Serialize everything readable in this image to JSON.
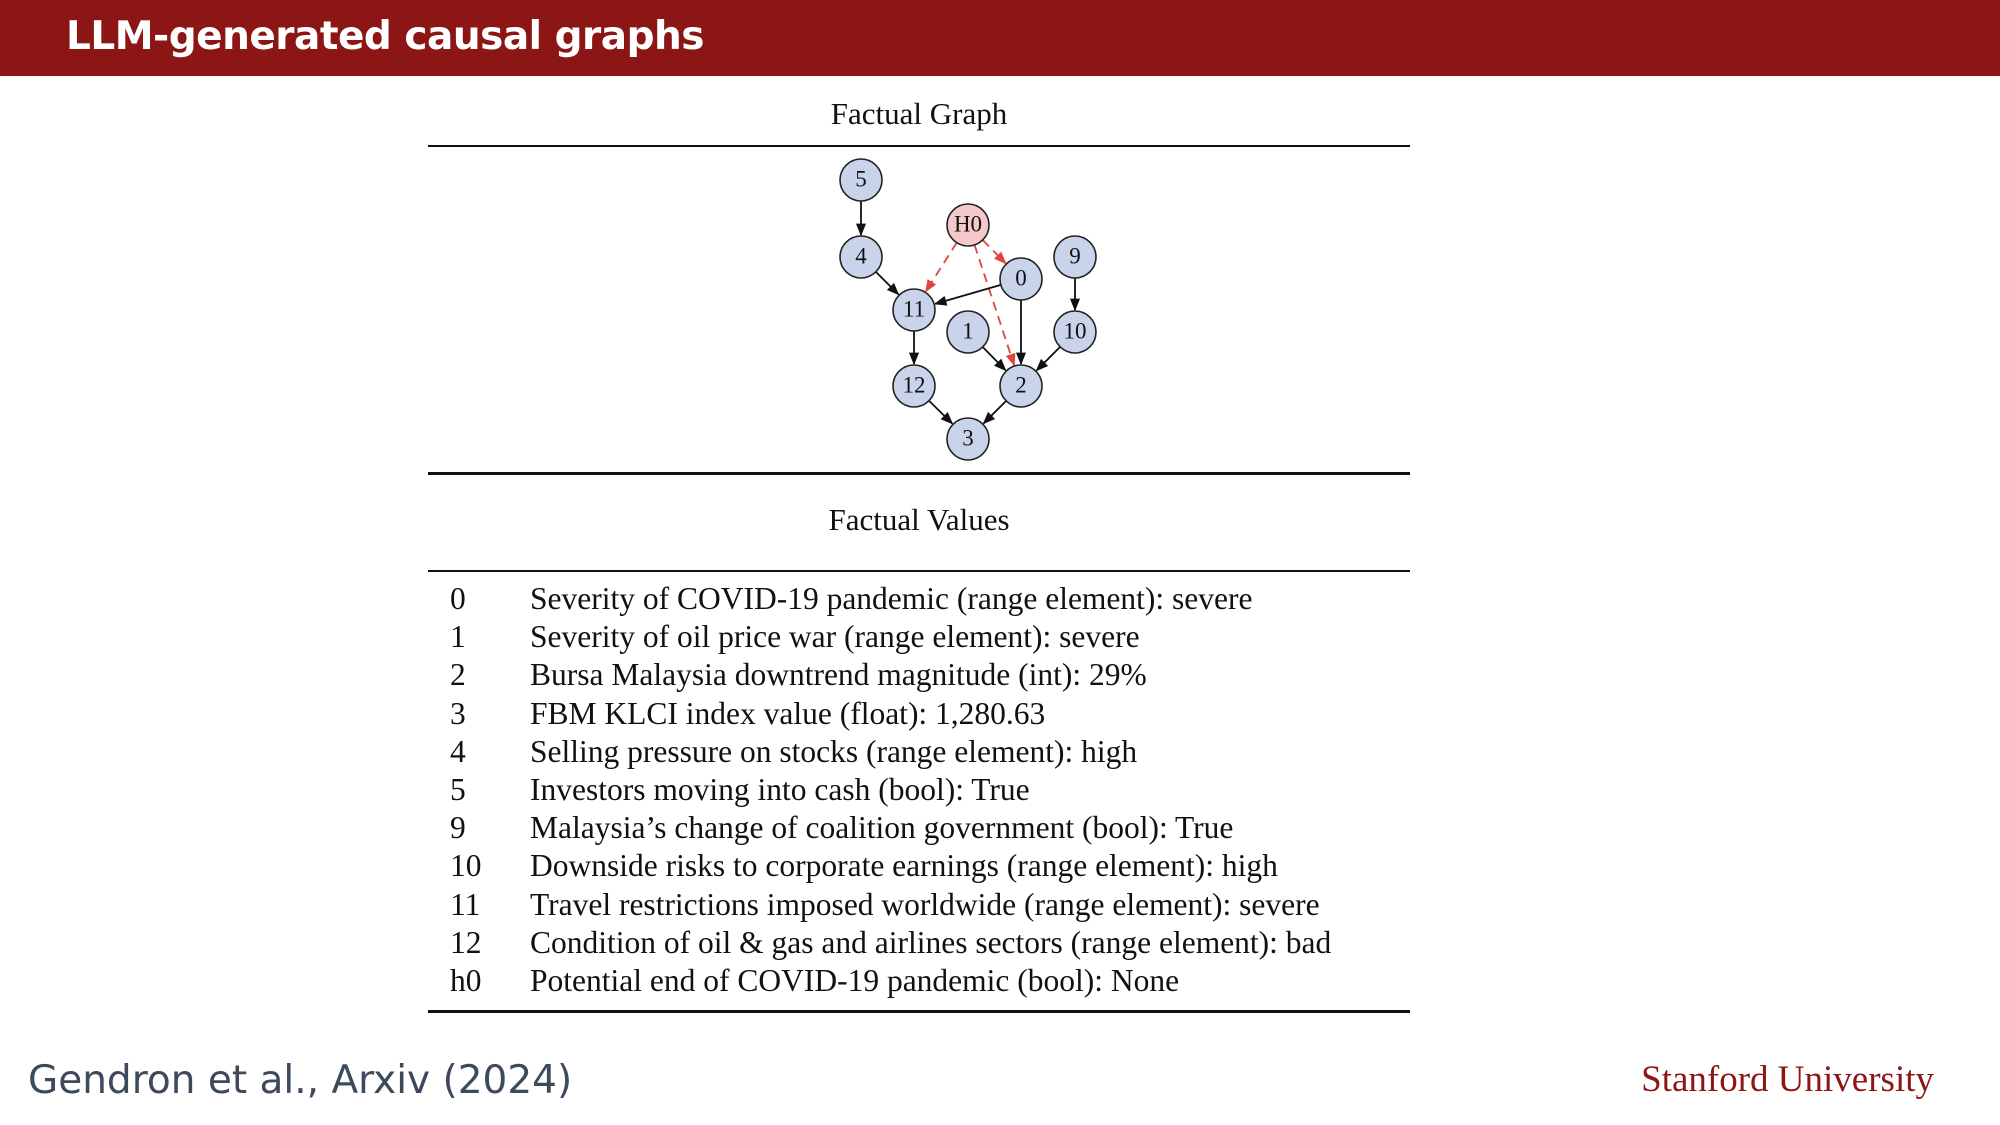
{
  "slide": {
    "title": "LLM-generated causal graphs"
  },
  "graph": {
    "heading": "Factual Graph",
    "nodes": [
      {
        "id": "5",
        "label": "5",
        "type": "observed"
      },
      {
        "id": "4",
        "label": "4",
        "type": "observed"
      },
      {
        "id": "H0",
        "label": "H0",
        "type": "hypothesis"
      },
      {
        "id": "9",
        "label": "9",
        "type": "observed"
      },
      {
        "id": "0",
        "label": "0",
        "type": "observed"
      },
      {
        "id": "11",
        "label": "11",
        "type": "observed"
      },
      {
        "id": "1",
        "label": "1",
        "type": "observed"
      },
      {
        "id": "10",
        "label": "10",
        "type": "observed"
      },
      {
        "id": "12",
        "label": "12",
        "type": "observed"
      },
      {
        "id": "2",
        "label": "2",
        "type": "observed"
      },
      {
        "id": "3",
        "label": "3",
        "type": "observed"
      }
    ],
    "edges": [
      {
        "from": "5",
        "to": "4",
        "style": "solid"
      },
      {
        "from": "4",
        "to": "11",
        "style": "solid"
      },
      {
        "from": "H0",
        "to": "11",
        "style": "dashed"
      },
      {
        "from": "H0",
        "to": "0",
        "style": "dashed"
      },
      {
        "from": "H0",
        "to": "2",
        "style": "dashed"
      },
      {
        "from": "0",
        "to": "11",
        "style": "solid"
      },
      {
        "from": "0",
        "to": "2",
        "style": "solid"
      },
      {
        "from": "9",
        "to": "10",
        "style": "solid"
      },
      {
        "from": "10",
        "to": "2",
        "style": "solid"
      },
      {
        "from": "1",
        "to": "2",
        "style": "solid"
      },
      {
        "from": "11",
        "to": "12",
        "style": "solid"
      },
      {
        "from": "12",
        "to": "3",
        "style": "solid"
      },
      {
        "from": "2",
        "to": "3",
        "style": "solid"
      }
    ],
    "colors": {
      "observed_fill": "#c9d3ea",
      "hypothesis_fill": "#f5c9c9",
      "node_stroke": "#222222",
      "solid_edge": "#111111",
      "dashed_edge": "#e0443c"
    }
  },
  "values": {
    "heading": "Factual Values",
    "rows": [
      {
        "index": "0",
        "text": "Severity of COVID-19 pandemic (range element): severe"
      },
      {
        "index": "1",
        "text": "Severity of oil price war (range element): severe"
      },
      {
        "index": "2",
        "text": "Bursa Malaysia downtrend magnitude (int): 29%"
      },
      {
        "index": "3",
        "text": "FBM KLCI index value (float): 1,280.63"
      },
      {
        "index": "4",
        "text": "Selling pressure on stocks (range element): high"
      },
      {
        "index": "5",
        "text": "Investors moving into cash (bool): True"
      },
      {
        "index": "9",
        "text": "Malaysia’s change of coalition government (bool): True"
      },
      {
        "index": "10",
        "text": "Downside risks to corporate earnings (range element): high"
      },
      {
        "index": "11",
        "text": "Travel restrictions imposed worldwide (range element): severe"
      },
      {
        "index": "12",
        "text": "Condition of oil & gas and airlines sectors (range element): bad"
      },
      {
        "index": "h0",
        "text": "Potential end of COVID-19 pandemic (bool): None"
      }
    ]
  },
  "footer": {
    "citation": "Gendron et al., Arxiv (2024)",
    "logo": "Stanford University"
  }
}
